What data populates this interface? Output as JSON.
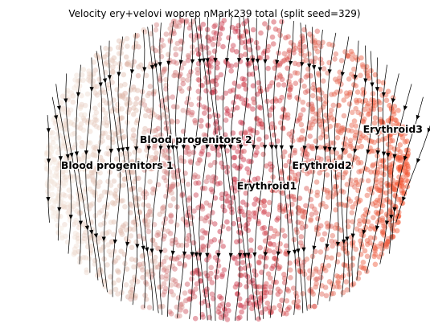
{
  "chart_data": {
    "type": "scatter",
    "title": "Velocity ery+velovi woprep nMark239 total (split seed=329)",
    "xlabel": "",
    "ylabel": "",
    "axes_visible": false,
    "grid": false,
    "legend": "on data",
    "overlay": "velocity streamlines with arrowheads",
    "clusters": [
      {
        "name": "Blood progenitors 1",
        "color": "#e8d6c7",
        "x": 22,
        "y": 0
      },
      {
        "name": "Blood progenitors 2",
        "color": "#dcb3a4",
        "x": 42,
        "y": 10
      },
      {
        "name": "Erythroid1",
        "color": "#cc3b4b",
        "x": 60,
        "y": -8
      },
      {
        "name": "Erythroid2",
        "color": "#e0755f",
        "x": 74,
        "y": 0
      },
      {
        "name": "Erythroid3",
        "color": "#ef6842",
        "x": 92,
        "y": 14
      }
    ],
    "colormap": [
      "#f4e9df",
      "#dcb3a4",
      "#c8283f",
      "#e26a58",
      "#f4502a"
    ]
  }
}
